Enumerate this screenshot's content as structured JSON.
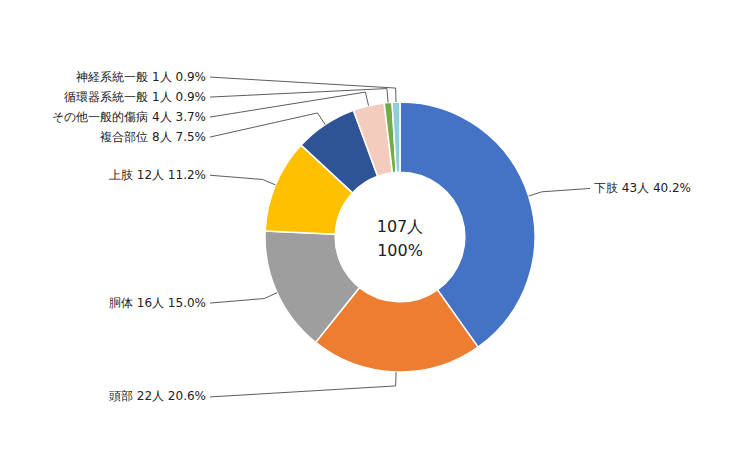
{
  "chart_data": {
    "type": "pie",
    "values": [
      43,
      22,
      16,
      12,
      8,
      4,
      1,
      1
    ],
    "value_labels": [
      "下肢 43人 40.2%",
      "頭部 22人 20.6%",
      "胴体 16人 15.0%",
      "上肢 12人 11.2%",
      "複合部位 8人 7.5%",
      "その他一般的傷病 4人 3.7%",
      "循環器系統一般 1人 0.9%",
      "神経系統一般 1人 0.9%"
    ],
    "colors": [
      "#4472C4",
      "#ED7D31",
      "#9E9E9E",
      "#FFC000",
      "#2F5496",
      "#F4CCBE",
      "#70AD47",
      "#92CDDC"
    ],
    "data_labels": true,
    "annotations": [
      "107人",
      "100%"
    ]
  }
}
